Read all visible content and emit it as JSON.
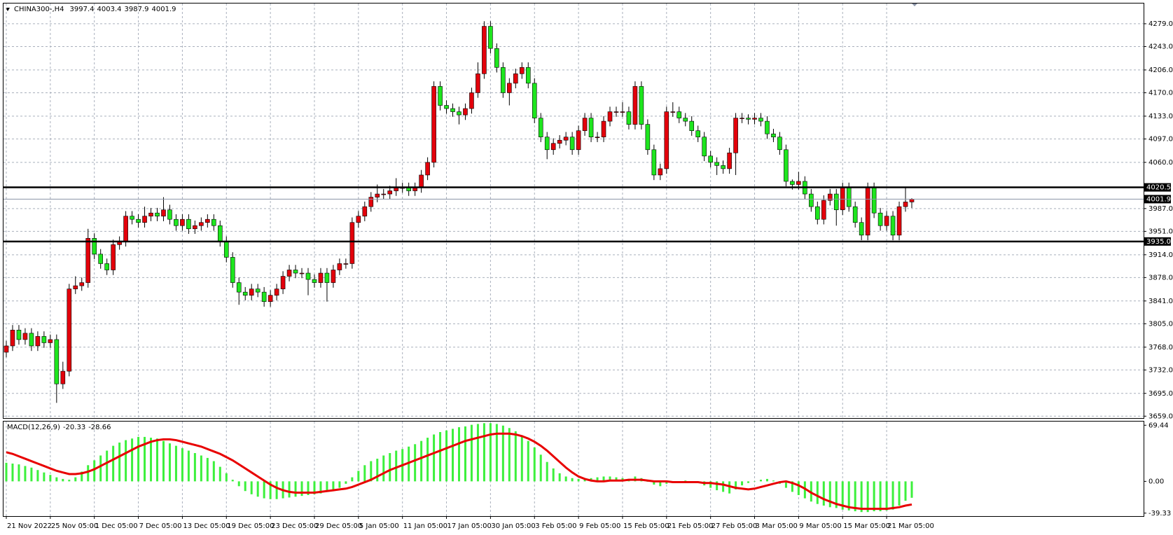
{
  "chart_data": {
    "type": "candlestick",
    "title": "CHINA300-,H4",
    "categories": [
      "21 Nov 2022",
      null,
      null,
      null,
      null,
      null,
      null,
      "25 Nov 05:00",
      null,
      null,
      null,
      null,
      null,
      null,
      "1 Dec 05:00",
      null,
      null,
      null,
      null,
      null,
      null,
      "7 Dec 05:00",
      null,
      null,
      null,
      null,
      null,
      null,
      "13 Dec 05:00",
      null,
      null,
      null,
      null,
      null,
      null,
      "19 Dec 05:00",
      null,
      null,
      null,
      null,
      null,
      null,
      "23 Dec 05:00",
      null,
      null,
      null,
      null,
      null,
      null,
      "29 Dec 05:00",
      null,
      null,
      null,
      null,
      null,
      null,
      "5 Jan 05:00",
      null,
      null,
      null,
      null,
      null,
      null,
      "11 Jan 05:00",
      null,
      null,
      null,
      null,
      null,
      null,
      "17 Jan 05:00",
      null,
      null,
      null,
      null,
      null,
      null,
      "30 Jan 05:00",
      null,
      null,
      null,
      null,
      null,
      null,
      "3 Feb 05:00",
      null,
      null,
      null,
      null,
      null,
      null,
      "9 Feb 05:00",
      null,
      null,
      null,
      null,
      null,
      null,
      "15 Feb 05:00",
      null,
      null,
      null,
      null,
      null,
      null,
      "21 Feb 05:00",
      null,
      null,
      null,
      null,
      null,
      null,
      "27 Feb 05:00",
      null,
      null,
      null,
      null,
      null,
      null,
      "3 Mar 05:00",
      null,
      null,
      null,
      null,
      null,
      null,
      "9 Mar 05:00",
      null,
      null,
      null,
      null,
      null,
      null,
      "15 Mar 05:00",
      null,
      null,
      null,
      null,
      null,
      null,
      "21 Mar 05:00",
      null,
      null,
      null,
      null
    ],
    "open": [
      3760,
      3770,
      3795,
      3780,
      3790,
      3770,
      3785,
      3775,
      3780,
      3710,
      3730,
      3860,
      3865,
      3870,
      3940,
      3915,
      3900,
      3890,
      3930,
      3935,
      3975,
      3970,
      3965,
      3975,
      3980,
      3975,
      3985,
      3970,
      3960,
      3970,
      3955,
      3960,
      3965,
      3970,
      3960,
      3935,
      3910,
      3870,
      3855,
      3850,
      3860,
      3855,
      3840,
      3850,
      3860,
      3880,
      3890,
      3885,
      3885,
      3875,
      3870,
      3885,
      3870,
      3890,
      3900,
      3900,
      3965,
      3975,
      3990,
      4005,
      4010,
      4010,
      4015,
      4020,
      4020,
      4015,
      4020,
      4040,
      4060,
      4180,
      4150,
      4145,
      4140,
      4135,
      4145,
      4170,
      4200,
      4275,
      4240,
      4210,
      4170,
      4185,
      4200,
      4210,
      4185,
      4130,
      4100,
      4080,
      4090,
      4095,
      4100,
      4080,
      4110,
      4130,
      4100,
      4100,
      4125,
      4140,
      4140,
      4140,
      4120,
      4180,
      4120,
      4080,
      4040,
      4050,
      4140,
      4140,
      4130,
      4125,
      4110,
      4100,
      4070,
      4060,
      4055,
      4050,
      4075,
      4130,
      4130,
      4128,
      4130,
      4125,
      4105,
      4100,
      4080,
      4030,
      4025,
      4030,
      4010,
      3990,
      3970,
      4000,
      4010,
      3985,
      4020,
      3990,
      3965,
      3945,
      4020,
      3980,
      3960,
      3975,
      3945,
      3990,
      3997.4
    ],
    "high": [
      3778,
      3803,
      3803,
      3798,
      3798,
      3793,
      3793,
      3788,
      3788,
      3745,
      3868,
      3880,
      3878,
      3955,
      3948,
      3923,
      3908,
      3938,
      3943,
      3983,
      3983,
      3978,
      3990,
      3988,
      3988,
      4005,
      3993,
      3978,
      3978,
      3978,
      3968,
      3973,
      3978,
      3978,
      3968,
      3943,
      3918,
      3878,
      3863,
      3868,
      3868,
      3863,
      3858,
      3868,
      3888,
      3898,
      3898,
      3893,
      3893,
      3883,
      3893,
      3893,
      3898,
      3908,
      3908,
      3973,
      3983,
      3998,
      4013,
      4025,
      4018,
      4023,
      4035,
      4028,
      4028,
      4028,
      4048,
      4068,
      4188,
      4188,
      4158,
      4153,
      4148,
      4153,
      4178,
      4218,
      4283,
      4283,
      4248,
      4218,
      4193,
      4208,
      4218,
      4218,
      4193,
      4138,
      4108,
      4098,
      4103,
      4108,
      4108,
      4118,
      4138,
      4138,
      4108,
      4133,
      4148,
      4148,
      4155,
      4148,
      4188,
      4188,
      4128,
      4088,
      4058,
      4148,
      4155,
      4148,
      4138,
      4133,
      4118,
      4108,
      4078,
      4068,
      4063,
      4083,
      4138,
      4138,
      4136,
      4138,
      4138,
      4133,
      4113,
      4108,
      4088,
      4033,
      4045,
      4038,
      4018,
      3998,
      4008,
      4018,
      4018,
      4028,
      4028,
      3998,
      3973,
      4028,
      4028,
      3988,
      3983,
      3983,
      3998,
      4020,
      4003.4
    ],
    "low": [
      3752,
      3762,
      3772,
      3772,
      3762,
      3762,
      3767,
      3767,
      3680,
      3702,
      3722,
      3852,
      3857,
      3862,
      3907,
      3892,
      3882,
      3882,
      3922,
      3927,
      3962,
      3957,
      3957,
      3967,
      3967,
      3967,
      3962,
      3952,
      3952,
      3947,
      3947,
      3952,
      3957,
      3952,
      3927,
      3902,
      3862,
      3835,
      3842,
      3842,
      3847,
      3832,
      3832,
      3842,
      3852,
      3872,
      3877,
      3877,
      3850,
      3862,
      3862,
      3840,
      3862,
      3882,
      3892,
      3892,
      3957,
      3967,
      3982,
      3997,
      4002,
      4002,
      4007,
      4012,
      4007,
      4007,
      4012,
      4032,
      4052,
      4142,
      4137,
      4132,
      4120,
      4127,
      4137,
      4162,
      4192,
      4232,
      4202,
      4162,
      4150,
      4177,
      4192,
      4177,
      4122,
      4092,
      4065,
      4072,
      4082,
      4087,
      4072,
      4072,
      4102,
      4092,
      4092,
      4092,
      4117,
      4132,
      4132,
      4112,
      4112,
      4112,
      4072,
      4032,
      4032,
      4042,
      4132,
      4122,
      4117,
      4102,
      4092,
      4062,
      4052,
      4040,
      4042,
      4042,
      4040,
      4122,
      4120,
      4120,
      4117,
      4097,
      4092,
      4072,
      4022,
      4017,
      4017,
      4002,
      3982,
      3962,
      3962,
      3992,
      3960,
      3977,
      3982,
      3957,
      3937,
      3937,
      3972,
      3952,
      3952,
      3937,
      3937,
      3982,
      3987.9
    ],
    "close": [
      3770,
      3795,
      3780,
      3790,
      3770,
      3785,
      3775,
      3780,
      3710,
      3730,
      3860,
      3865,
      3870,
      3940,
      3915,
      3900,
      3890,
      3930,
      3935,
      3975,
      3970,
      3965,
      3975,
      3980,
      3975,
      3985,
      3970,
      3960,
      3970,
      3955,
      3960,
      3965,
      3970,
      3960,
      3935,
      3910,
      3870,
      3855,
      3850,
      3860,
      3855,
      3840,
      3850,
      3860,
      3880,
      3890,
      3885,
      3885,
      3875,
      3870,
      3885,
      3870,
      3890,
      3900,
      3900,
      3965,
      3975,
      3990,
      4005,
      4010,
      4010,
      4015,
      4020,
      4020,
      4015,
      4020,
      4040,
      4060,
      4180,
      4150,
      4145,
      4140,
      4135,
      4145,
      4170,
      4200,
      4275,
      4240,
      4210,
      4170,
      4185,
      4200,
      4210,
      4185,
      4130,
      4100,
      4080,
      4090,
      4095,
      4100,
      4080,
      4110,
      4130,
      4100,
      4100,
      4125,
      4140,
      4140,
      4140,
      4120,
      4180,
      4120,
      4080,
      4040,
      4050,
      4140,
      4140,
      4130,
      4125,
      4110,
      4100,
      4070,
      4060,
      4055,
      4050,
      4075,
      4130,
      4130,
      4128,
      4130,
      4125,
      4105,
      4100,
      4080,
      4030,
      4025,
      4030,
      4010,
      3990,
      3970,
      4000,
      4010,
      3985,
      4020,
      3990,
      3965,
      3945,
      4020,
      3980,
      3960,
      3975,
      3945,
      3990,
      3997.4,
      4001.9
    ],
    "up_color": "#e3000b",
    "down_color": "#1ee61e",
    "ylim": [
      3656,
      4311
    ],
    "yticks": [
      {
        "value": 4279,
        "label": "4279.0"
      },
      {
        "value": 4243,
        "label": "4243.0"
      },
      {
        "value": 4206,
        "label": "4206.0"
      },
      {
        "value": 4170,
        "label": "4170.0"
      },
      {
        "value": 4133,
        "label": "4133.0"
      },
      {
        "value": 4097,
        "label": "4097.0"
      },
      {
        "value": 4060,
        "label": "4060.0"
      },
      {
        "value": 3987,
        "label": "3987.0"
      },
      {
        "value": 3951,
        "label": "3951.0"
      },
      {
        "value": 3914,
        "label": "3914.0"
      },
      {
        "value": 3878,
        "label": "3878.0"
      },
      {
        "value": 3841,
        "label": "3841.0"
      },
      {
        "value": 3805,
        "label": "3805.0"
      },
      {
        "value": 3768,
        "label": "3768.0"
      },
      {
        "value": 3732,
        "label": "3732.0"
      },
      {
        "value": 3695,
        "label": "3695.0"
      },
      {
        "value": 3659,
        "label": "3659.0"
      }
    ],
    "grid": true,
    "levels": [
      {
        "value": 4020.5,
        "label": "4020.5"
      },
      {
        "value": 3935,
        "label": "3935.0"
      }
    ],
    "indicator": {
      "type": "macd",
      "name": "MACD(12,26,9)",
      "ylim": [
        -43,
        74
      ],
      "yticks": [
        69.44,
        {
          "value": 0,
          "label": "0.00"
        },
        -39.33
      ],
      "series": [
        {
          "style": "histogram",
          "color": "#3cf03c",
          "values": [
            23,
            22,
            21,
            19,
            17,
            14,
            11,
            8,
            5,
            3,
            2,
            5,
            12,
            20,
            26,
            32,
            38,
            44,
            48,
            51,
            53,
            55,
            55,
            54,
            53,
            50,
            47,
            44,
            41,
            38,
            35,
            32,
            29,
            25,
            18,
            10,
            2,
            -6,
            -12,
            -16,
            -19,
            -21,
            -22,
            -22,
            -21,
            -20,
            -19,
            -18,
            -17,
            -16,
            -15,
            -13,
            -11,
            -8,
            -3,
            5,
            13,
            20,
            25,
            28,
            32,
            35,
            38,
            40,
            43,
            46,
            50,
            54,
            58,
            61,
            63,
            65,
            67,
            68,
            70,
            71,
            72,
            72,
            71,
            69,
            66,
            62,
            57,
            50,
            42,
            33,
            24,
            16,
            10,
            6,
            4,
            3,
            3,
            4,
            5,
            6,
            6,
            5,
            4,
            3,
            6,
            4,
            0,
            -4,
            -6,
            -3,
            -1,
            0,
            1,
            0,
            -2,
            -5,
            -8,
            -11,
            -13,
            -15,
            -10,
            -5,
            -2,
            0,
            2,
            3,
            1,
            -3,
            -8,
            -13,
            -17,
            -21,
            -25,
            -28,
            -30,
            -32,
            -33,
            -35,
            -36,
            -37,
            -38,
            -38,
            -37,
            -37,
            -36,
            -35,
            -30,
            -24,
            -20.33
          ]
        },
        {
          "style": "line",
          "color": "#e80000",
          "values": [
            36,
            34,
            31,
            28,
            25,
            22,
            19,
            16,
            13,
            11,
            9,
            9,
            10,
            12,
            15,
            19,
            23,
            27,
            31,
            35,
            39,
            43,
            46,
            49,
            51,
            52,
            52,
            51,
            49,
            47,
            45,
            43,
            40,
            37,
            34,
            30,
            26,
            21,
            16,
            11,
            6,
            1,
            -4,
            -8,
            -11,
            -13,
            -14,
            -14,
            -14,
            -14,
            -13,
            -12,
            -11,
            -10,
            -9,
            -7,
            -4,
            -1,
            2,
            6,
            10,
            14,
            17,
            20,
            23,
            26,
            29,
            32,
            35,
            38,
            41,
            44,
            47,
            50,
            52,
            54,
            56,
            58,
            59,
            59,
            59,
            58,
            56,
            53,
            49,
            44,
            38,
            31,
            24,
            17,
            11,
            6,
            3,
            1,
            0,
            0,
            1,
            1,
            1,
            2,
            2,
            2,
            1,
            0,
            0,
            0,
            -1,
            -1,
            -1,
            -1,
            -1,
            -2,
            -2,
            -3,
            -4,
            -6,
            -8,
            -9,
            -10,
            -9,
            -7,
            -5,
            -3,
            -1,
            0,
            -2,
            -5,
            -9,
            -14,
            -18,
            -22,
            -25,
            -28,
            -30,
            -32,
            -33,
            -34,
            -34,
            -34,
            -34,
            -34,
            -33,
            -32,
            -30,
            -28.66
          ]
        }
      ]
    }
  }
}
